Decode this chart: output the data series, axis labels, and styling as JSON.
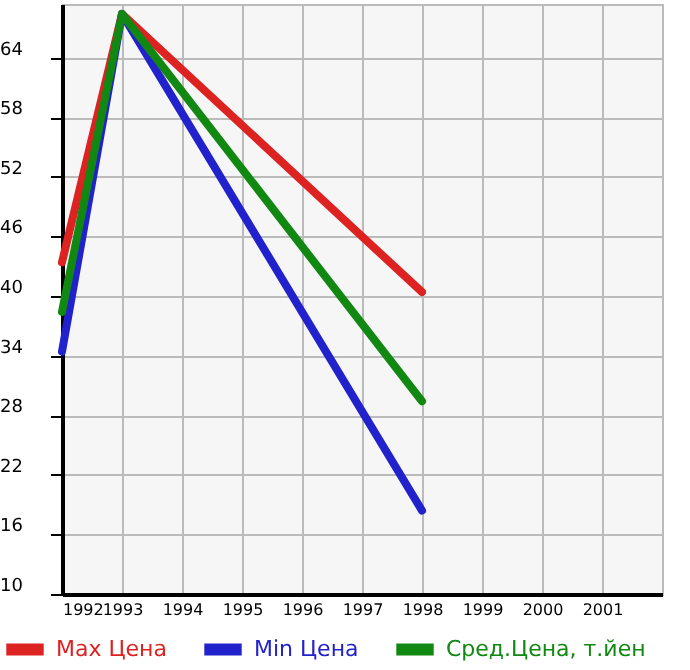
{
  "chart_data": {
    "type": "line",
    "x": [
      1992,
      1993,
      1998
    ],
    "series": [
      {
        "name": "Max Цена",
        "color": "#dd2222",
        "values": [
          43.4,
          68.4,
          40.4
        ]
      },
      {
        "name": "Min Цена",
        "color": "#2222cc",
        "values": [
          34.4,
          68.4,
          18.4
        ]
      },
      {
        "name": "Сред.Цена, т.йен",
        "color": "#118811",
        "values": [
          38.4,
          68.4,
          29.4
        ]
      }
    ],
    "xlim": [
      1992,
      2002
    ],
    "xticks": [
      1992,
      1993,
      1994,
      1995,
      1996,
      1997,
      1998,
      1999,
      2000,
      2001
    ],
    "ylim": [
      10,
      69.4
    ],
    "yticks": [
      10,
      16,
      22,
      28,
      34,
      40,
      46,
      52,
      58,
      64
    ],
    "grid": true,
    "legend": "bottom",
    "marker": "none",
    "line_style": "solid"
  }
}
